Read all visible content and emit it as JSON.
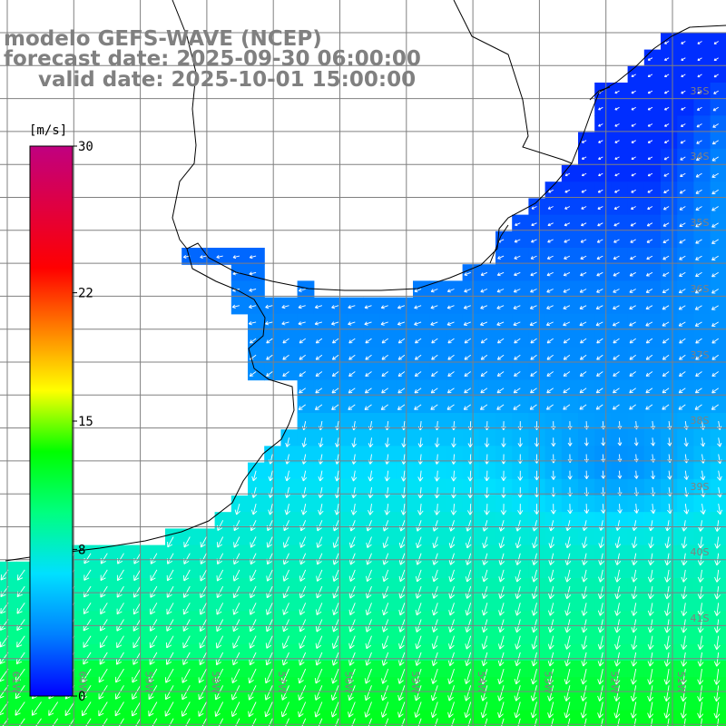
{
  "title": {
    "line1": "modelo GEFS-WAVE (NCEP)",
    "line2": "forecast date: 2025-09-30 06:00:00",
    "line3": "valid date: 2025-10-01 15:00:00"
  },
  "colorbar": {
    "unit": "[m/s]",
    "ticks": [
      {
        "value": 30,
        "label": "30"
      },
      {
        "value": 22,
        "label": "22"
      },
      {
        "value": 15,
        "label": "15"
      },
      {
        "value": 8,
        "label": "8"
      },
      {
        "value": 0,
        "label": "0"
      }
    ],
    "min": 0,
    "max": 30,
    "colors": [
      "#0000ff",
      "#0080ff",
      "#00e0ff",
      "#00ff80",
      "#00ff00",
      "#ffff00",
      "#ff8000",
      "#ff0000",
      "#e00040",
      "#c00080"
    ]
  },
  "lat_labels": [
    "35S",
    "34S",
    "35S",
    "36S",
    "37S",
    "38S",
    "39S",
    "40S",
    "41S"
  ],
  "lon_labels": [
    "61W",
    "60W",
    "59W",
    "58W",
    "57W",
    "56W",
    "55W",
    "54W",
    "53W",
    "52W",
    "51W"
  ],
  "colors": {
    "land": "#ffffff",
    "grid": "#808080",
    "coast": "#000000",
    "arrow": "#ffffff",
    "title": "#808080"
  }
}
